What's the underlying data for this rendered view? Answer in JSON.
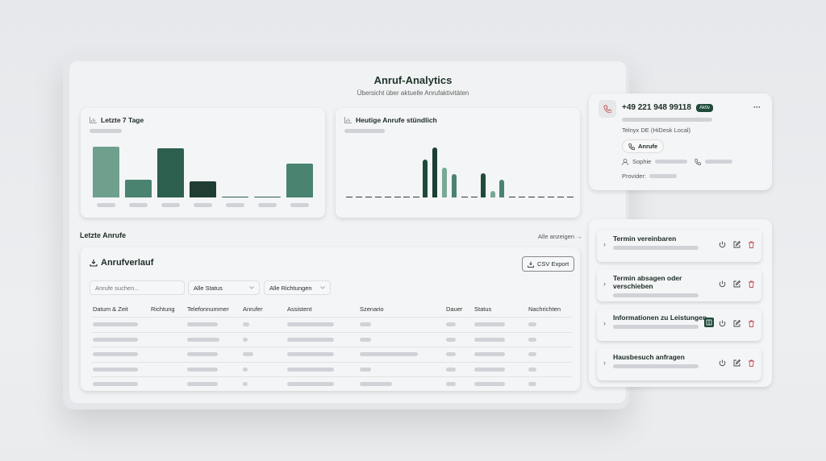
{
  "header": {
    "title": "Anruf-Analytics",
    "subtitle": "Übersicht über aktuelle Anrufaktivitäten"
  },
  "weekly": {
    "title": "Letzte 7 Tage",
    "icon": "bar-chart-icon"
  },
  "hourly": {
    "title": "Heutige Anrufe stündlich",
    "icon": "bar-chart-icon"
  },
  "chart_data": [
    {
      "type": "bar",
      "title": "Letzte 7 Tage",
      "values": [
        100,
        35,
        97,
        32,
        2,
        1,
        67
      ],
      "colors": [
        "#6fa08e",
        "#4a8470",
        "#2c5f4e",
        "#1f3d33",
        "#2c5f4e",
        "#2c5f4e",
        "#4a8470"
      ]
    },
    {
      "type": "bar",
      "title": "Heutige Anrufe stündlich",
      "values": [
        0,
        0,
        0,
        0,
        0,
        0,
        0,
        0,
        47,
        62,
        37,
        29,
        0,
        0,
        30,
        8,
        22,
        0,
        0,
        0,
        0,
        0,
        0,
        0
      ],
      "colors": {
        "8": "#1f4a3a",
        "9": "#1c3f33",
        "10": "#7aa895",
        "11": "#4a8470",
        "14": "#1f4a3a",
        "15": "#7aa895",
        "16": "#4a8470"
      }
    }
  ],
  "recent": {
    "title": "Letzte Anrufe",
    "show_all": "Alle anzeigen →"
  },
  "history": {
    "title": "Anrufverlauf",
    "csv": "CSV Export",
    "search_placeholder": "Anrufe suchen...",
    "status_filter": "Alle Status",
    "direction_filter": "Alle Richtungen",
    "columns": [
      "Datum & Zeit",
      "Richtung",
      "Telefonnummer",
      "Anrufer",
      "Assistent",
      "Szenario",
      "Dauer",
      "Status",
      "Nachrichten"
    ]
  },
  "phone": {
    "number": "+49 221 948 99118",
    "badge": "Aktiv",
    "provider_name": "Telnyx DE (HiDesk Local)",
    "calls_button": "Anrufe",
    "user": "Sophie",
    "provider_label": "Provider:",
    "menu": "···"
  },
  "scenarios": [
    {
      "label": "Termin vereinbaren"
    },
    {
      "label": "Termin absagen oder verschieben"
    },
    {
      "label": "Informationen zu Leistungen"
    },
    {
      "label": "Hausbesuch anfragen"
    }
  ],
  "colors": {
    "accent": "#1f4a3a",
    "delete": "#c0504d"
  }
}
